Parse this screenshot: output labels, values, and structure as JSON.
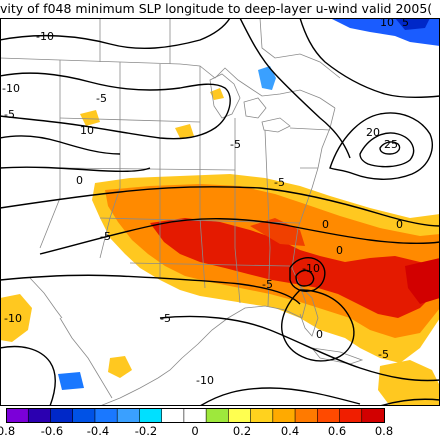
{
  "title": "vity of f048 minimum SLP longitude to deep-layer u-wind valid 2005(",
  "map": {
    "contour_labels": [
      "-10",
      "-10",
      "-5",
      "-5",
      "10",
      "10",
      "-5",
      "0",
      "0",
      "-5",
      "0",
      "-5",
      "-10",
      "-5",
      "-10",
      "20",
      "25",
      "0",
      "-5",
      "5",
      "0",
      "-5",
      "-10"
    ]
  },
  "colorbar": {
    "colors": [
      "#7b00d9",
      "#2b00b0",
      "#0028c8",
      "#0052e6",
      "#1a78ff",
      "#3aa0ff",
      "#00e0ff",
      "#ffffff",
      "#ffffff",
      "#9ee83c",
      "#ffff50",
      "#ffd21e",
      "#ffaa00",
      "#ff7a00",
      "#ff4a00",
      "#f01e00",
      "#d20000"
    ],
    "tick_labels": [
      "0.8",
      "-0.6",
      "-0.4",
      "-0.2",
      "0",
      "0.2",
      "0.4",
      "0.6",
      "0.8"
    ]
  },
  "colors": {
    "contour": "#000000",
    "border": "#8a8a8a",
    "positive_strong": "#e41a00",
    "positive_mid": "#ff7a00",
    "positive_weak": "#ffc820",
    "negative": "#1a78ff"
  }
}
